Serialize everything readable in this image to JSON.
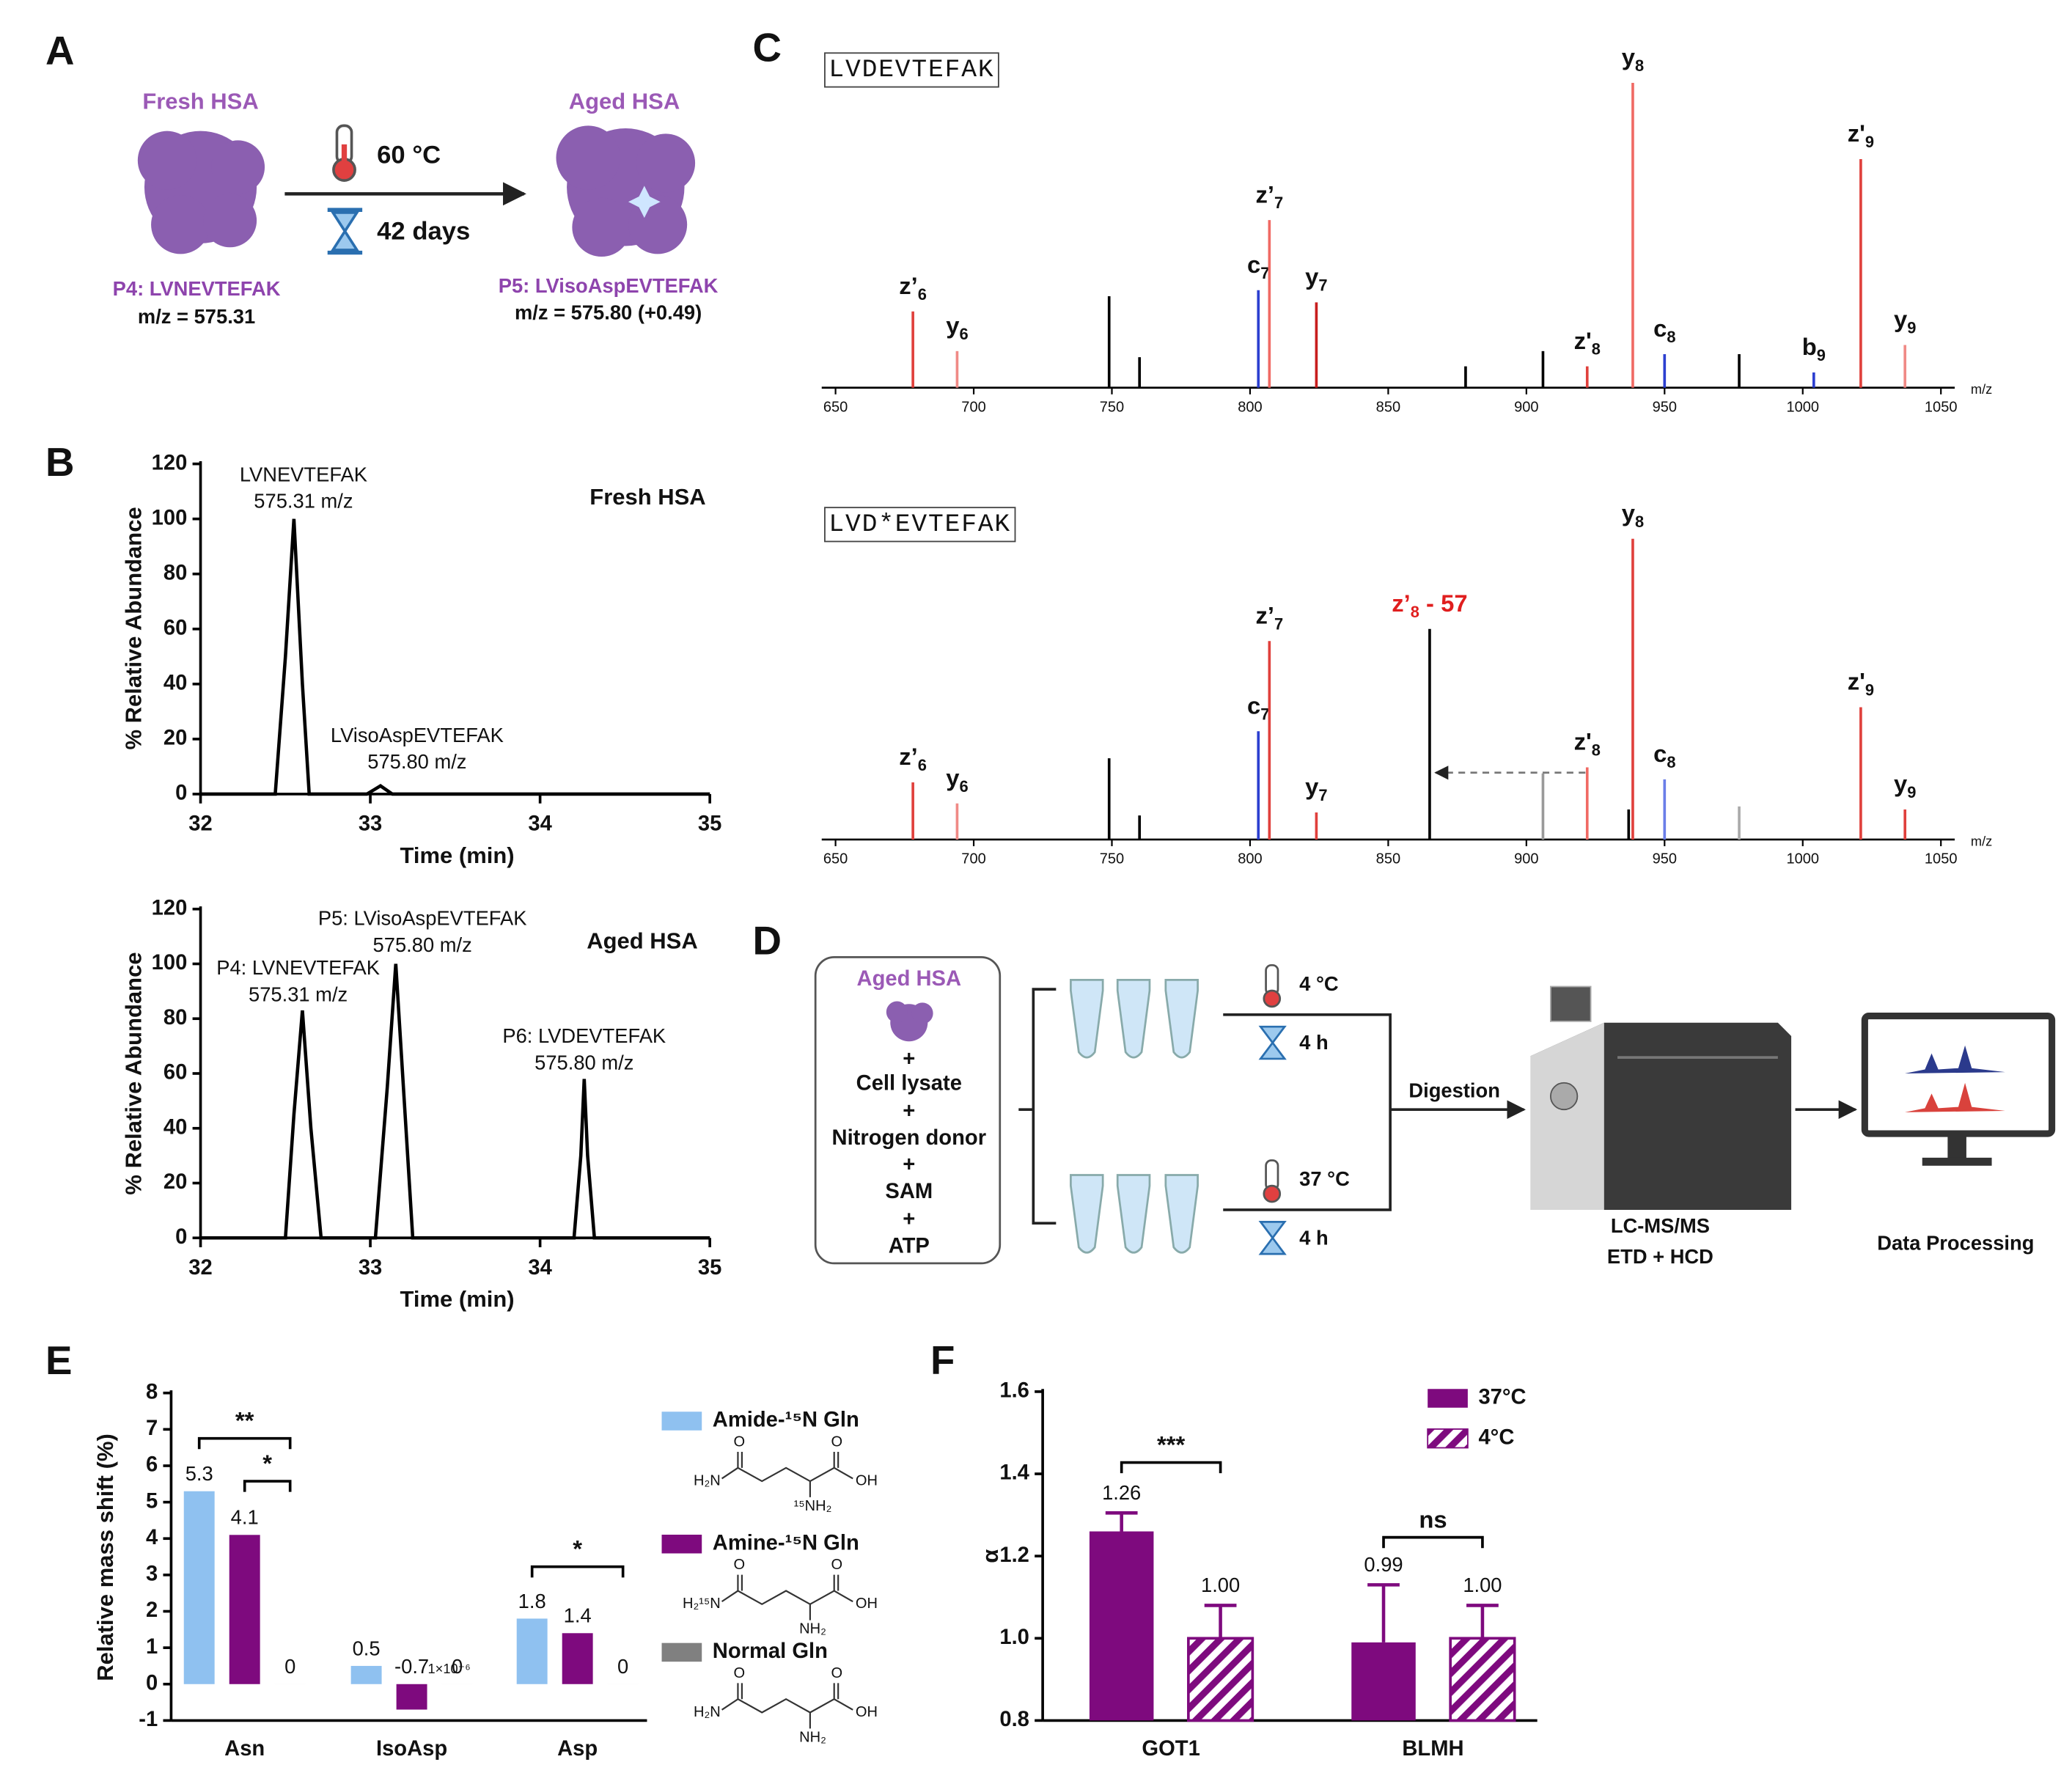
{
  "panel_labels": [
    "A",
    "B",
    "C",
    "D",
    "E",
    "F"
  ],
  "panel_a": {
    "fresh": "Fresh HSA",
    "aged": "Aged HSA",
    "temperature": "60 °C",
    "duration": "42 days",
    "p4_peptide": "P4: LVNEVTEFAK",
    "p4_mz": "m/z = 575.31",
    "p5_peptide": "P5: LVisoAspEVTEFAK",
    "p5_mz": "m/z = 575.80  (+0.49)"
  },
  "panel_d": {
    "sample": "Aged HSA",
    "plus": "+",
    "additives": [
      "Cell lysate",
      "Nitrogen donor",
      "SAM",
      "ATP"
    ],
    "conditions": [
      {
        "temperature": "4 °C",
        "time": "4 h"
      },
      {
        "temperature": "37 °C",
        "time": "4 h"
      }
    ],
    "step": "Digestion",
    "instrument": "LC-MS/MS",
    "method": "ETD + HCD",
    "output": "Data Processing"
  },
  "chart_data": [
    {
      "type": "line",
      "title": "Fresh HSA",
      "x": [
        32,
        32.44,
        32.5,
        32.55,
        32.6,
        32.64,
        32.98,
        33.06,
        33.13,
        35
      ],
      "values": [
        0,
        0,
        50,
        100,
        40,
        0,
        0,
        3,
        0,
        0
      ],
      "color": "#000000",
      "xlim": [
        32,
        35
      ],
      "xticks": [
        32,
        33,
        34,
        35
      ],
      "ylim": [
        0,
        120
      ],
      "yticks": [
        0,
        20,
        40,
        60,
        80,
        100,
        120
      ],
      "xlabel": "Time (min)",
      "ylabel": "% Relative Abundance",
      "annotations": [
        {
          "text": "LVNEVTEFAK",
          "subtext": "575.31 m/z"
        },
        {
          "text": "LVisoAspEVTEFAK",
          "subtext": "575.80 m/z"
        }
      ]
    },
    {
      "type": "line",
      "title": "Aged HSA",
      "x": [
        32,
        32.5,
        32.55,
        32.6,
        32.65,
        32.71,
        33.03,
        33.1,
        33.15,
        33.2,
        33.25,
        34.2,
        34.24,
        34.26,
        34.28,
        34.32,
        35
      ],
      "values": [
        0,
        0,
        45,
        83,
        40,
        0,
        0,
        55,
        100,
        50,
        0,
        0,
        30,
        58,
        30,
        0,
        0
      ],
      "color": "#000000",
      "xlim": [
        32,
        35
      ],
      "xticks": [
        32,
        33,
        34,
        35
      ],
      "ylim": [
        0,
        120
      ],
      "yticks": [
        0,
        20,
        40,
        60,
        80,
        100,
        120
      ],
      "xlabel": "Time (min)",
      "ylabel": "% Relative Abundance",
      "annotations": [
        {
          "text": "P4: LVNEVTEFAK",
          "subtext": "575.31 m/z"
        },
        {
          "text": "P5: LVisoAspEVTEFAK",
          "subtext": "575.80 m/z"
        },
        {
          "text": "P6: LVDEVTEFAK",
          "subtext": "575.80 m/z"
        }
      ]
    },
    {
      "type": "spectrum",
      "sequence": "LVDEVTEFAK",
      "xlim": [
        645,
        1055
      ],
      "xticks": [
        650,
        700,
        750,
        800,
        850,
        900,
        950,
        1000,
        1050
      ],
      "xlabel": "m/z",
      "peaks": [
        {
          "mz": 678,
          "intensity": 25,
          "color": "#e0403c",
          "ion": "z’",
          "sub": "6"
        },
        {
          "mz": 694,
          "intensity": 12,
          "color": "#f08a86",
          "ion": "y",
          "sub": "6"
        },
        {
          "mz": 749,
          "intensity": 30,
          "color": "#000000"
        },
        {
          "mz": 760,
          "intensity": 10,
          "color": "#000000"
        },
        {
          "mz": 803,
          "intensity": 32,
          "color": "#2c3fd0",
          "ion": "c",
          "sub": "7"
        },
        {
          "mz": 807,
          "intensity": 55,
          "color": "#f06a64",
          "ion": "z’",
          "sub": "7"
        },
        {
          "mz": 824,
          "intensity": 28,
          "color": "#c81e1e",
          "ion": "y",
          "sub": "7"
        },
        {
          "mz": 878,
          "intensity": 7,
          "color": "#000000"
        },
        {
          "mz": 906,
          "intensity": 12,
          "color": "#000000"
        },
        {
          "mz": 922,
          "intensity": 7,
          "color": "#e0403c",
          "ion": "z'",
          "sub": "8"
        },
        {
          "mz": 938.5,
          "intensity": 100,
          "color": "#f06a64",
          "ion": "y",
          "sub": "8"
        },
        {
          "mz": 950,
          "intensity": 11,
          "color": "#2c3fd0",
          "ion": "c",
          "sub": "8"
        },
        {
          "mz": 977,
          "intensity": 11,
          "color": "#000000"
        },
        {
          "mz": 1004,
          "intensity": 5,
          "color": "#2c3fd0",
          "ion": "b",
          "sub": "9"
        },
        {
          "mz": 1021,
          "intensity": 75,
          "color": "#e0403c",
          "ion": "z'",
          "sub": "9"
        },
        {
          "mz": 1037,
          "intensity": 14,
          "color": "#f08a86",
          "ion": "y",
          "sub": "9"
        }
      ]
    },
    {
      "type": "spectrum",
      "sequence": "LVD*EVTEFAK",
      "xlim": [
        645,
        1055
      ],
      "xticks": [
        650,
        700,
        750,
        800,
        850,
        900,
        950,
        1000,
        1050
      ],
      "xlabel": "m/z",
      "peaks": [
        {
          "mz": 678,
          "intensity": 19,
          "color": "#e0403c",
          "ion": "z’",
          "sub": "6"
        },
        {
          "mz": 694,
          "intensity": 12,
          "color": "#f08a86",
          "ion": "y",
          "sub": "6"
        },
        {
          "mz": 749,
          "intensity": 27,
          "color": "#000000"
        },
        {
          "mz": 760,
          "intensity": 8,
          "color": "#000000"
        },
        {
          "mz": 803,
          "intensity": 36,
          "color": "#2c3fd0",
          "ion": "c",
          "sub": "7"
        },
        {
          "mz": 807,
          "intensity": 66,
          "color": "#e0403c",
          "ion": "z’",
          "sub": "7"
        },
        {
          "mz": 824,
          "intensity": 9,
          "color": "#e0403c",
          "ion": "y",
          "sub": "7"
        },
        {
          "mz": 865,
          "intensity": 70,
          "color": "#000000",
          "ion": "z’",
          "sub": "8",
          "suffix": " - 57",
          "label_color": "#e01e1e"
        },
        {
          "mz": 906,
          "intensity": 22,
          "color": "#999999"
        },
        {
          "mz": 922,
          "intensity": 24,
          "color": "#f06a64",
          "ion": "z'",
          "sub": "8"
        },
        {
          "mz": 937,
          "intensity": 10,
          "color": "#000000"
        },
        {
          "mz": 938.5,
          "intensity": 100,
          "color": "#e0403c",
          "ion": "y",
          "sub": "8"
        },
        {
          "mz": 950,
          "intensity": 20,
          "color": "#6a7ee8",
          "ion": "c",
          "sub": "8"
        },
        {
          "mz": 977,
          "intensity": 11,
          "color": "#aaaaaa"
        },
        {
          "mz": 1021,
          "intensity": 44,
          "color": "#e0403c",
          "ion": "z'",
          "sub": "9"
        },
        {
          "mz": 1037,
          "intensity": 10,
          "color": "#e0403c",
          "ion": "y",
          "sub": "9"
        }
      ]
    },
    {
      "type": "bar",
      "ylabel": "Relative mass shift (%)",
      "categories": [
        "Asn",
        "IsoAsp",
        "Asp"
      ],
      "series": [
        {
          "name": "Amide-¹⁵N Gln",
          "color": "#8fc1f0",
          "values": [
            5.3,
            0.5,
            1.8
          ],
          "structure": [
            "O",
            "O",
            "H₂N",
            "OH",
            "¹⁵NH₂"
          ]
        },
        {
          "name": "Amine-¹⁵N Gln",
          "color": "#7e0a7e",
          "values": [
            4.1,
            -0.7,
            1.4
          ],
          "structure": [
            "O",
            "O",
            "H₂¹⁵N",
            "OH",
            "NH₂"
          ]
        },
        {
          "name": "Normal Gln",
          "color": "#808080",
          "values": [
            0,
            1e-06,
            0
          ],
          "value_labels": [
            "0",
            "0",
            "0"
          ],
          "structure": [
            "O",
            "O",
            "H₂N",
            "OH",
            "NH₂"
          ]
        }
      ],
      "ylim": [
        -1,
        8
      ],
      "yticks": [
        -1,
        0,
        1,
        2,
        3,
        4,
        5,
        6,
        7,
        8
      ],
      "annotations": [
        "**",
        "*",
        "*"
      ],
      "note": "1×10⁻⁶"
    },
    {
      "type": "bar",
      "ylabel": "α",
      "categories": [
        "GOT1",
        "BLMH"
      ],
      "series": [
        {
          "name": "37°C",
          "color": "#7e0a7e",
          "values": [
            1.26,
            0.99
          ],
          "value_labels": [
            "1.26",
            "0.99"
          ],
          "errors": [
            0.045,
            0.14
          ]
        },
        {
          "name": "4°C",
          "color": "#7e0a7e",
          "hatch": true,
          "values": [
            1.0,
            1.0
          ],
          "value_labels": [
            "1.00",
            "1.00"
          ],
          "errors": [
            0.08,
            0.08
          ]
        }
      ],
      "ylim": [
        0.8,
        1.6
      ],
      "yticks": [
        0.8,
        {
          "value": 1.0,
          "label": "1.0"
        },
        1.2,
        1.4,
        1.6
      ],
      "annotations": [
        "***",
        "ns"
      ]
    }
  ]
}
